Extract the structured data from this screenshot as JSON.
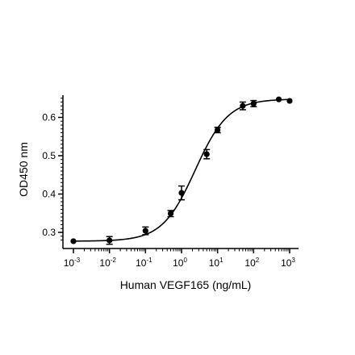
{
  "chart_data": {
    "type": "scatter",
    "title": "",
    "xlabel": "Human VEGF165 (ng/mL)",
    "ylabel": "OD450 nm",
    "xscale": "log",
    "xlim": [
      0.001,
      1000
    ],
    "ylim": [
      0.28,
      0.65
    ],
    "xticks": [
      {
        "base": "10",
        "exp": "-3"
      },
      {
        "base": "10",
        "exp": "-2"
      },
      {
        "base": "10",
        "exp": "-1"
      },
      {
        "base": "10",
        "exp": "0"
      },
      {
        "base": "10",
        "exp": "1"
      },
      {
        "base": "10",
        "exp": "2"
      },
      {
        "base": "10",
        "exp": "3"
      }
    ],
    "yticks": [
      "0.3",
      "0.4",
      "0.5",
      "0.6"
    ],
    "grid": false,
    "series": [
      {
        "marker": "filled-circle",
        "color": "#000000",
        "fit": "four-parameter logistic",
        "points": [
          {
            "x": 0.001,
            "y": 0.277,
            "err": 0.0
          },
          {
            "x": 0.01,
            "y": 0.279,
            "err": 0.01
          },
          {
            "x": 0.1,
            "y": 0.304,
            "err": 0.01
          },
          {
            "x": 0.5,
            "y": 0.349,
            "err": 0.008
          },
          {
            "x": 1,
            "y": 0.403,
            "err": 0.018
          },
          {
            "x": 5,
            "y": 0.504,
            "err": 0.012
          },
          {
            "x": 10,
            "y": 0.567,
            "err": 0.007
          },
          {
            "x": 50,
            "y": 0.63,
            "err": 0.01
          },
          {
            "x": 100,
            "y": 0.636,
            "err": 0.008
          },
          {
            "x": 500,
            "y": 0.647,
            "err": 0.0
          },
          {
            "x": 1000,
            "y": 0.643,
            "err": 0.0
          }
        ]
      }
    ]
  }
}
